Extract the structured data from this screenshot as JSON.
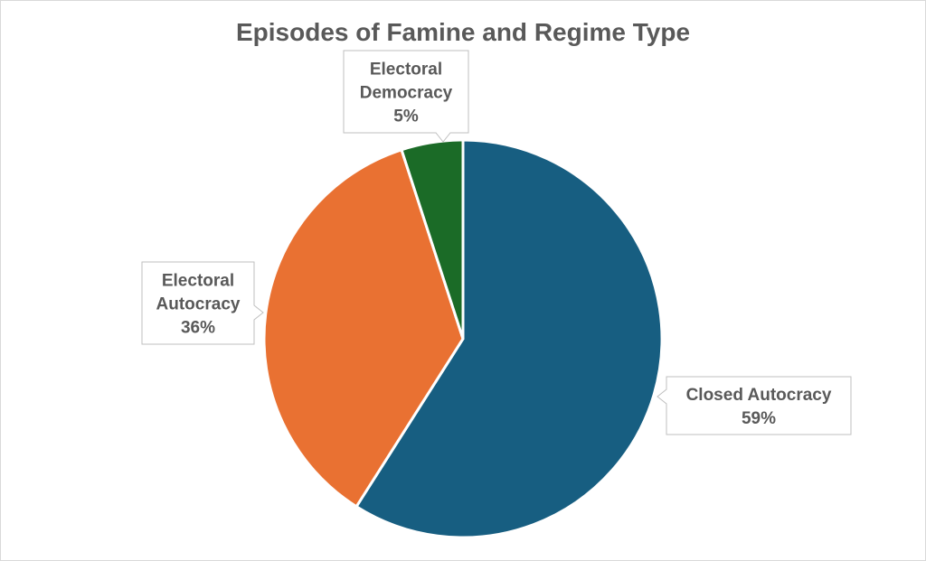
{
  "chart_data": {
    "type": "pie",
    "title": "Episodes of Famine and Regime Type",
    "categories": [
      "Closed Autocracy",
      "Electoral Autocracy",
      "Electoral Democracy"
    ],
    "values": [
      59,
      36,
      5
    ],
    "value_labels": [
      "59%",
      "36%",
      "5%"
    ],
    "colors": [
      "#175e81",
      "#e97132",
      "#1b6b27"
    ],
    "legend": "none",
    "data_labels": "callouts"
  }
}
